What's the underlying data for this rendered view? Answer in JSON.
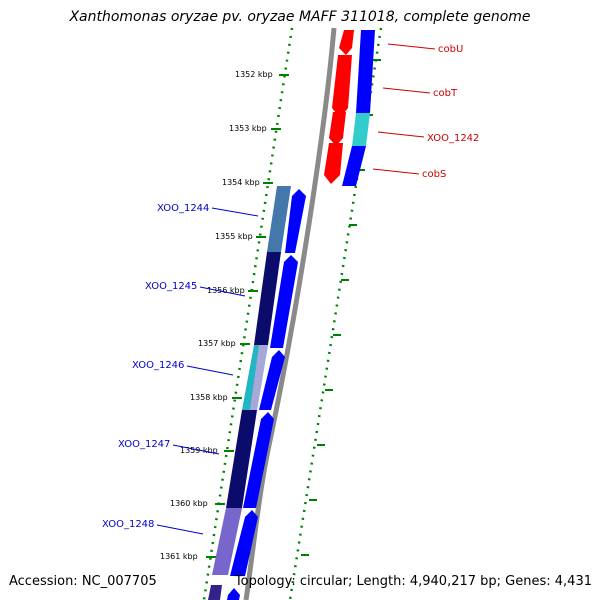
{
  "title": "Xanthomonas oryzae pv. oryzae MAFF 311018, complete genome",
  "footer": {
    "accession": "Accession: NC_007705",
    "topology": "Topology: circular; Length: 4,940,217 bp; Genes: 4,431"
  },
  "colors": {
    "backbone": "#8a8a8a",
    "ticks": "#008000",
    "label_red": "#cc0000",
    "label_blue": "#0000cc"
  },
  "ruler": {
    "unit": "kbp",
    "labels": [
      "1352 kbp",
      "1353 kbp",
      "1354 kbp",
      "1355 kbp",
      "1356 kbp",
      "1357 kbp",
      "1358 kbp",
      "1359 kbp",
      "1360 kbp",
      "1361 kbp"
    ]
  },
  "upper_genes": [
    {
      "name": "cobU",
      "color": "red"
    },
    {
      "name": "cobT",
      "color": "red"
    },
    {
      "name": "XOO_1242",
      "color": "red"
    },
    {
      "name": "cobS",
      "color": "red"
    }
  ],
  "lower_genes": [
    {
      "name": "XOO_1244",
      "color": "blue"
    },
    {
      "name": "XOO_1245",
      "color": "blue"
    },
    {
      "name": "XOO_1246",
      "color": "blue"
    },
    {
      "name": "XOO_1247",
      "color": "blue"
    },
    {
      "name": "XOO_1248",
      "color": "blue"
    }
  ]
}
